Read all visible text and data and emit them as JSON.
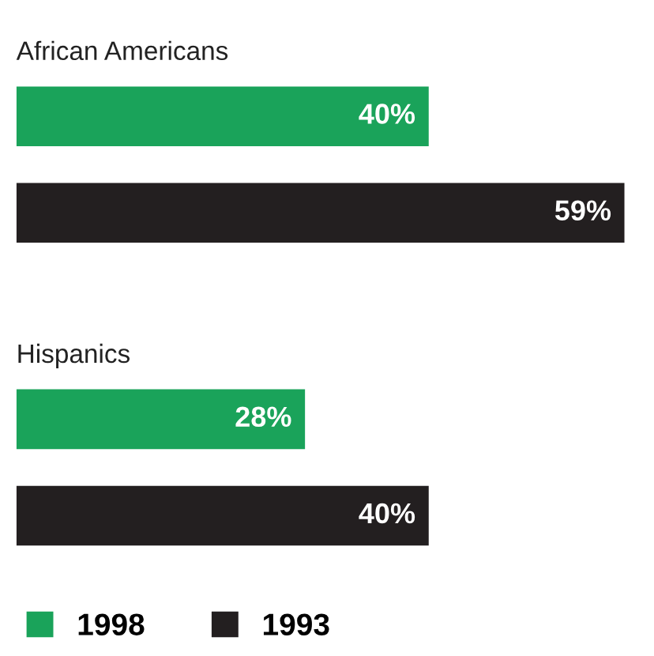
{
  "chart_data": {
    "type": "bar",
    "orientation": "horizontal",
    "categories": [
      "African Americans",
      "Hispanics"
    ],
    "series": [
      {
        "name": "1998",
        "color": "#1aa35a",
        "values": [
          40,
          28
        ],
        "value_labels": [
          "40%",
          "28%"
        ]
      },
      {
        "name": "1993",
        "color": "#231f20",
        "values": [
          59,
          40
        ],
        "value_labels": [
          "59%",
          "40%"
        ]
      }
    ],
    "legend": "bottom left"
  }
}
